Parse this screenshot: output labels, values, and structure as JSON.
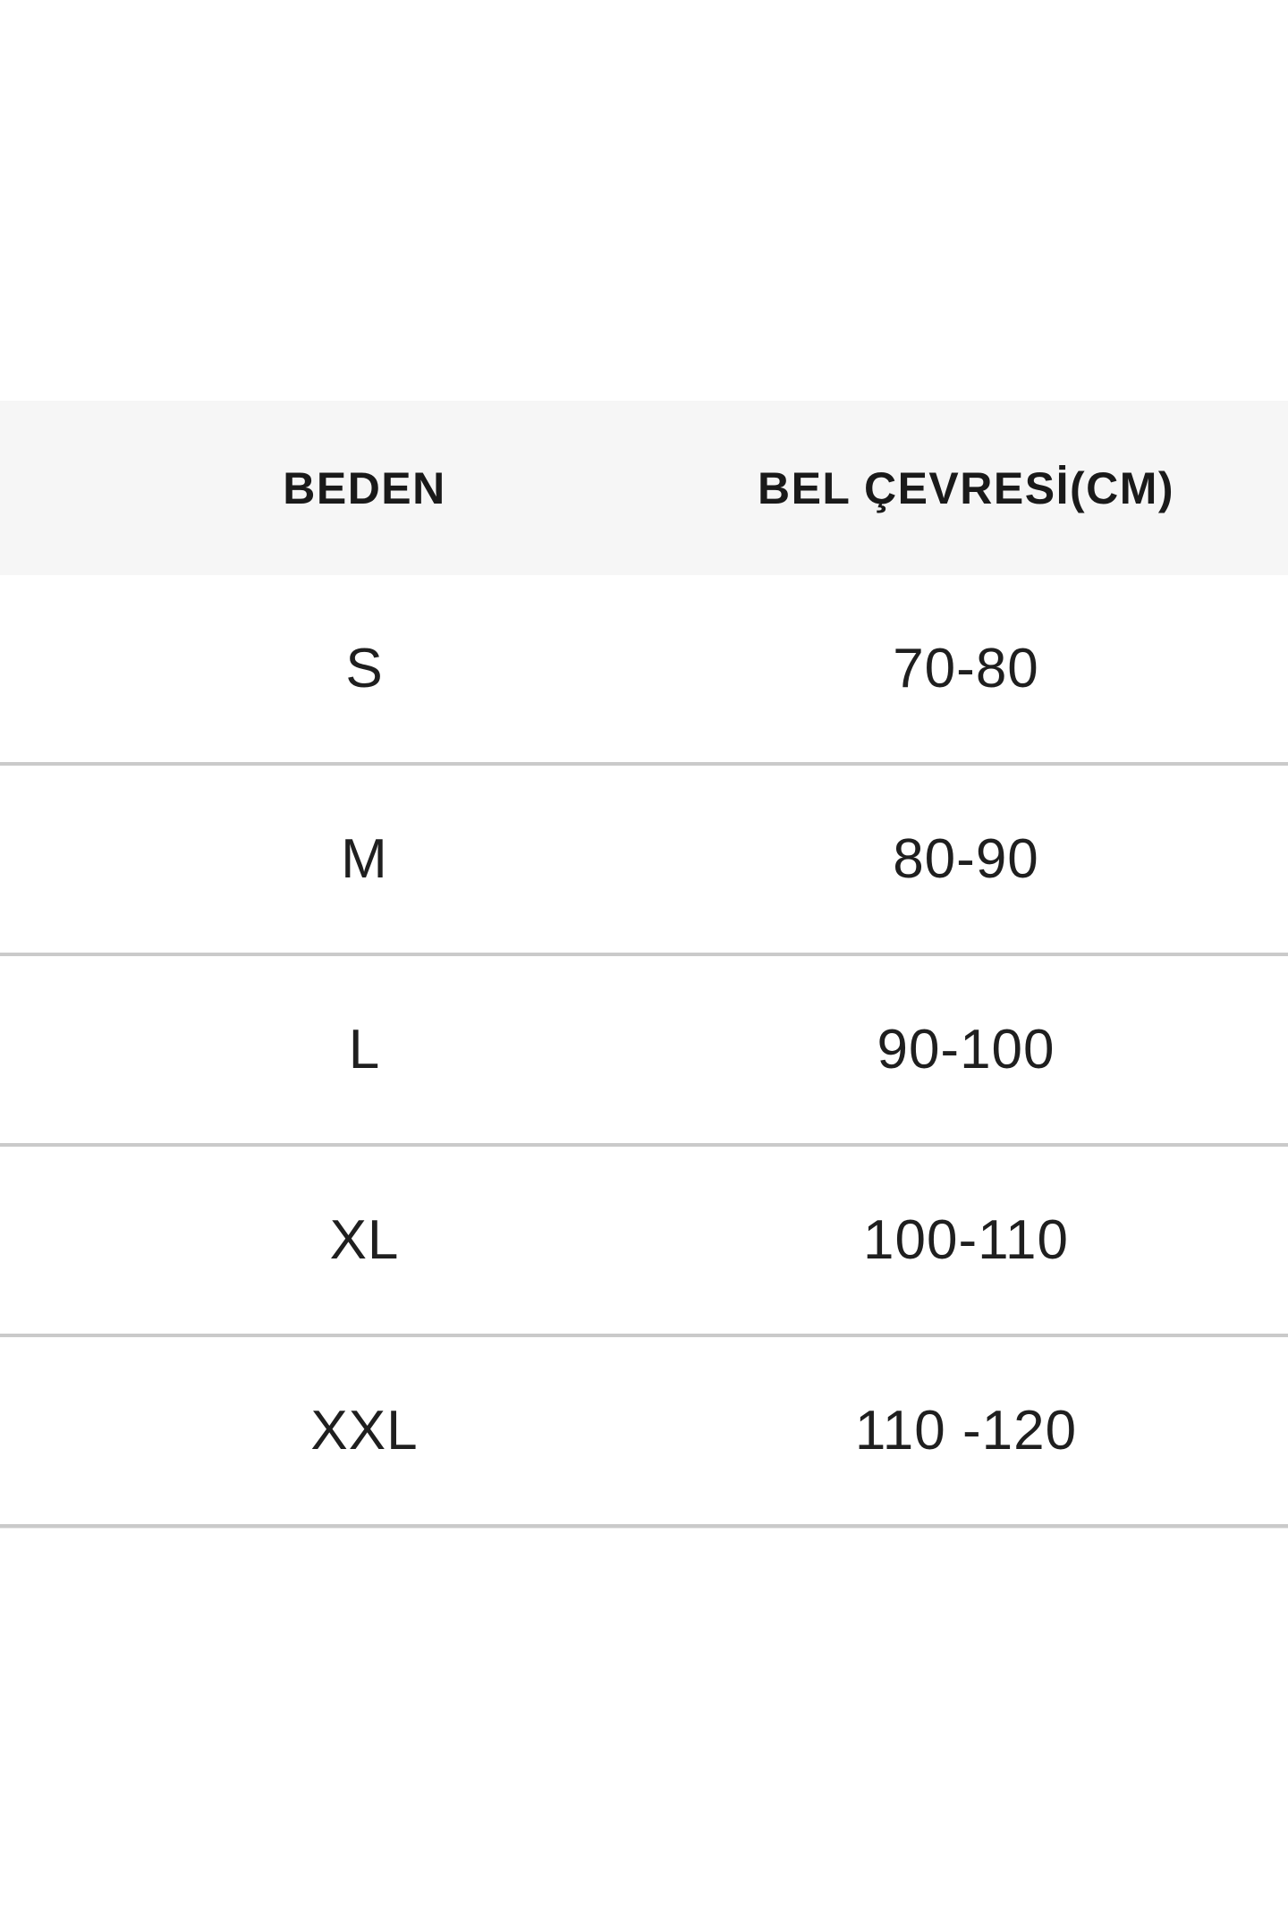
{
  "chart_data": {
    "type": "table",
    "columns": [
      "BEDEN",
      "BEL ÇEVRESİ(CM)"
    ],
    "rows": [
      {
        "size": "S",
        "waist": "70-80"
      },
      {
        "size": "M",
        "waist": "80-90"
      },
      {
        "size": "L",
        "waist": "90-100"
      },
      {
        "size": "XL",
        "waist": "100-110"
      },
      {
        "size": "XXL",
        "waist": "110 -120"
      }
    ]
  },
  "colors": {
    "header_background": "#f6f6f6",
    "divider": "#cacaca",
    "text": "#1a1a1a",
    "page_background": "#ffffff"
  }
}
